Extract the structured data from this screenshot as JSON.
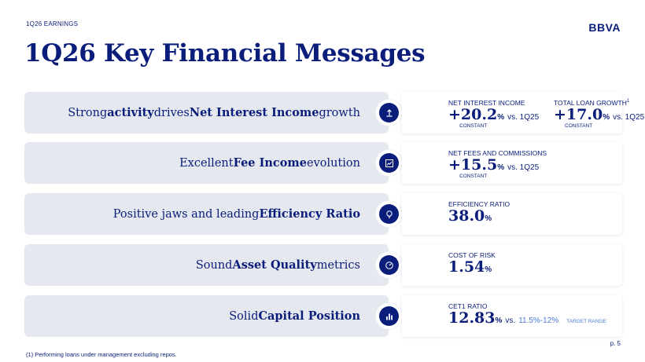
{
  "header": {
    "eyebrow": "1Q26 EARNINGS",
    "logo": "BBVA",
    "title": "1Q26 Key Financial Messages"
  },
  "rows": [
    {
      "parts": [
        [
          "Strong ",
          false
        ],
        [
          "activity",
          true
        ],
        [
          " drives ",
          false
        ],
        [
          "Net Interest Income",
          true
        ],
        [
          " growth",
          false
        ]
      ],
      "icon": "upload-arrow-icon",
      "metrics": [
        {
          "label": "NET INTEREST INCOME",
          "sup": "",
          "value": "+20.2",
          "unit": "%",
          "vs": "vs. 1Q25",
          "sub": "CONSTANT"
        },
        {
          "label": "TOTAL LOAN GROWTH",
          "sup": "1",
          "value": "+17.0",
          "unit": "%",
          "vs": "vs. 1Q25",
          "sub": "CONSTANT"
        }
      ]
    },
    {
      "parts": [
        [
          "Excellent ",
          false
        ],
        [
          "Fee Income",
          true
        ],
        [
          " evolution",
          false
        ]
      ],
      "icon": "trend-chart-icon",
      "metrics": [
        {
          "label": "NET FEES AND COMMISSIONS",
          "sup": "",
          "value": "+15.5",
          "unit": "%",
          "vs": "vs. 1Q25",
          "sub": "CONSTANT"
        }
      ]
    },
    {
      "parts": [
        [
          "Positive jaws and leading ",
          false
        ],
        [
          "Efficiency Ratio",
          true
        ]
      ],
      "icon": "lightbulb-icon",
      "metrics": [
        {
          "label": "EFFICIENCY RATIO",
          "sup": "",
          "value": "38.0",
          "unit": "%",
          "vs": "",
          "sub": ""
        }
      ]
    },
    {
      "parts": [
        [
          "Sound ",
          false
        ],
        [
          "Asset Quality",
          true
        ],
        [
          " metrics",
          false
        ]
      ],
      "icon": "gauge-icon",
      "metrics": [
        {
          "label": "COST OF RISK",
          "sup": "",
          "value": "1.54",
          "unit": "%",
          "vs": "",
          "sub": ""
        }
      ]
    },
    {
      "parts": [
        [
          "Solid ",
          false
        ],
        [
          "Capital Position",
          true
        ]
      ],
      "icon": "bar-chart-icon",
      "metrics": [
        {
          "label": "CET1 RATIO",
          "sup": "",
          "value": "12.83",
          "unit": "%",
          "vs": "vs.",
          "range": "11.5%-12%",
          "tag": "TARGET RANGE",
          "sub": ""
        }
      ]
    }
  ],
  "footer": {
    "footnote": "(1) Performing loans under management excluding repos.",
    "page": "p. 5"
  }
}
